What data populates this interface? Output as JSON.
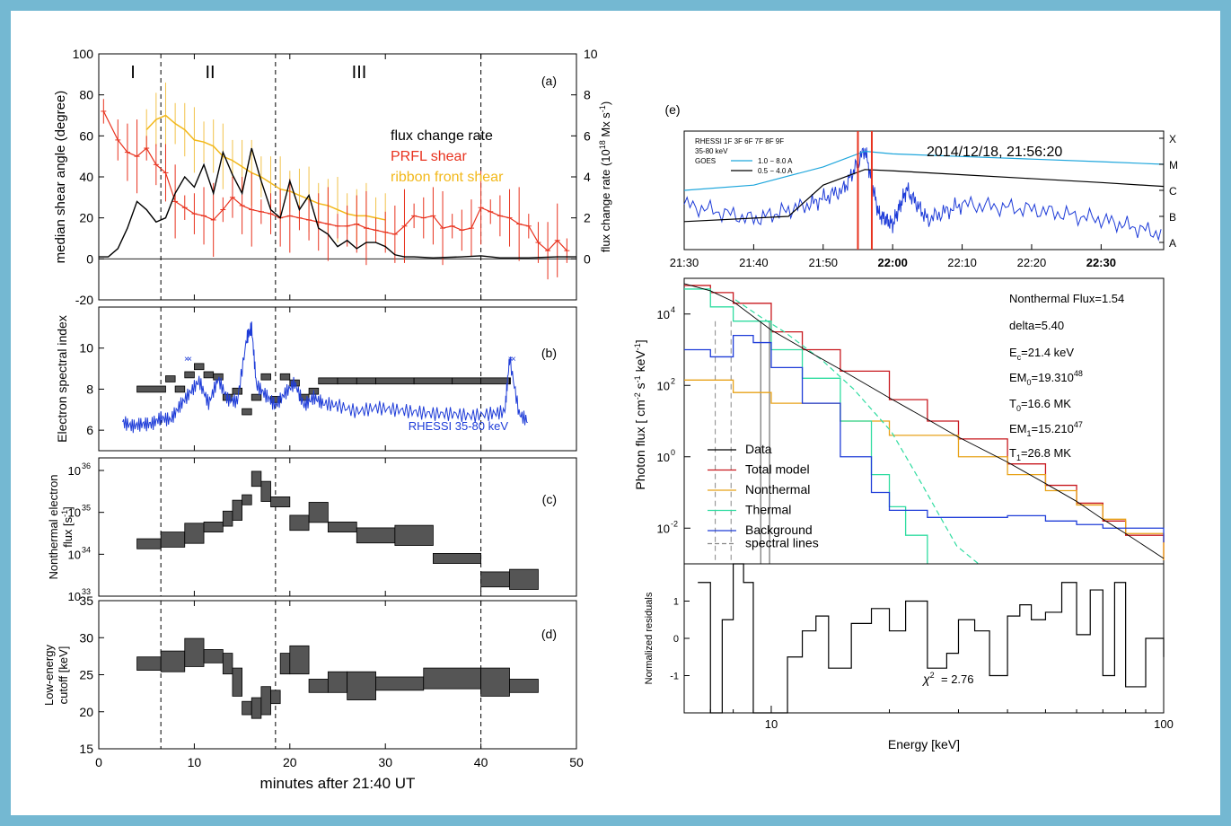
{
  "panel_a": {
    "tag": "(a)",
    "phases": [
      "I",
      "II",
      "III"
    ],
    "ylabel_left": "median shear angle (degree)",
    "ylabel_right_pre": "flux change rate (10",
    "ylabel_right_sup": "18",
    "ylabel_right_post": " Mx s",
    "ylabel_right_sup2": "-1",
    "ylabel_right_end": ")",
    "yticks_left": [
      "100",
      "80",
      "60",
      "40",
      "20",
      "0",
      "-20"
    ],
    "yticks_right": [
      "10",
      "8",
      "6",
      "4",
      "2",
      "0"
    ],
    "legend": [
      {
        "label": "flux change rate",
        "color": "#000000"
      },
      {
        "label": "PRFL shear",
        "color": "#e8321e"
      },
      {
        "label": "ribbon front shear",
        "color": "#f2b81a"
      }
    ]
  },
  "panel_b": {
    "tag": "(b)",
    "ylabel": "Electron spectral index",
    "yticks": [
      "10",
      "8",
      "6"
    ],
    "annotation": "RHESSI 35-80 keV"
  },
  "panel_c": {
    "tag": "(c)",
    "ylabel1": "Nonthermal electron",
    "ylabel2_pre": "flux [s",
    "ylabel2_sup": "-1",
    "ylabel2_post": "]",
    "ytick_base": "10",
    "ytick_exps": [
      "36",
      "35",
      "34",
      "33"
    ]
  },
  "panel_d": {
    "tag": "(d)",
    "ylabel1": "Low-energy",
    "ylabel2": "cutoff [keV]",
    "yticks": [
      "35",
      "30",
      "25",
      "20",
      "15"
    ],
    "xticks": [
      "0",
      "10",
      "20",
      "30",
      "40",
      "50"
    ],
    "xlabel": "minutes after 21:40 UT"
  },
  "panel_e": {
    "tag": "(e)",
    "header_line1": "RHESSI  1F 3F 6F 7F 8F 9F",
    "header_line2": "35-80 keV",
    "header_goes": "GOES",
    "goes_legend": [
      {
        "label": "1.0 − 8.0 A",
        "color": "#1ea6dc"
      },
      {
        "label": "0.5 − 4.0 A",
        "color": "#000000"
      }
    ],
    "datetime": "2014/12/18,  21:56:20",
    "goes_classes": [
      "X",
      "M",
      "C",
      "B",
      "A"
    ],
    "time_ticks": [
      "21:30",
      "21:40",
      "21:50",
      "22:00",
      "22:10",
      "22:20",
      "22:30"
    ],
    "spec_ylabel_pre": "Photon flux [ cm",
    "spec_ylabel_sup1": "-2",
    "spec_ylabel_mid": " s",
    "spec_ylabel_sup2": "-1",
    "spec_ylabel_mid2": " keV",
    "spec_ylabel_sup3": "-1",
    "spec_ylabel_end": "]",
    "spec_ytick_base": "10",
    "spec_ytick_exps": [
      "4",
      "2",
      "0",
      "-2"
    ],
    "fit_params": {
      "nonthermal_flux": "Nonthermal Flux=1.54",
      "delta": "delta=5.40",
      "ec_pre": "E",
      "ec_sub": "c",
      "ec_post": "=21.4 keV",
      "em0_pre": "EM",
      "em0_sub": "0",
      "em0_post": "=19.310",
      "em0_sup": "48",
      "t0_pre": "T",
      "t0_sub": "0",
      "t0_post": "=16.6 MK",
      "em1_pre": "EM",
      "em1_sub": "1",
      "em1_post": "=15.210",
      "em1_sup": "47",
      "t1_pre": "T",
      "t1_sub": "1",
      "t1_post": "=26.8 MK"
    },
    "spec_legend": [
      {
        "label": "Data",
        "color": "#000000"
      },
      {
        "label": "Total model",
        "color": "#c8181e"
      },
      {
        "label": "Nonthermal",
        "color": "#e8a218"
      },
      {
        "label": "Thermal",
        "color": "#2fdca0"
      },
      {
        "label": "Background",
        "color": "#1e3cd8"
      },
      {
        "label": "spectral lines",
        "color": "#888888"
      }
    ],
    "resid_ylabel": "Normalized residuals",
    "resid_yticks": [
      "1",
      "0",
      "-1"
    ],
    "chi2_text": "= 2.76",
    "energy_ticks": [
      "10",
      "100"
    ],
    "xlabel": "Energy [keV]"
  },
  "chart_data": [
    {
      "type": "line",
      "panel": "a",
      "title": "",
      "xlabel": "",
      "ylabel": "median shear angle (degree)",
      "y2label": "flux change rate (10^18 Mx s^-1)",
      "xlim": [
        0,
        50
      ],
      "ylim": [
        -20,
        100
      ],
      "y2lim": [
        0,
        10
      ],
      "phase_boundaries": [
        6.5,
        18.5,
        40
      ],
      "series": [
        {
          "name": "PRFL shear",
          "axis": "left",
          "x": [
            0.5,
            2,
            3,
            4,
            5,
            6,
            7,
            8,
            9,
            10,
            11,
            12,
            13,
            14,
            15,
            16,
            17,
            18,
            19,
            20,
            21,
            22,
            23,
            24,
            25,
            26,
            27,
            28,
            29,
            30,
            31,
            32,
            33,
            34,
            35,
            36,
            37,
            38,
            39,
            40,
            41,
            42,
            43,
            44,
            45,
            46,
            47,
            48,
            49
          ],
          "y": [
            72,
            58,
            52,
            50,
            54,
            46,
            42,
            28,
            25,
            22,
            21,
            19,
            24,
            30,
            26,
            24,
            23,
            22,
            20,
            21,
            20,
            19,
            18,
            17,
            16,
            16,
            17,
            15,
            14,
            13,
            12,
            16,
            21,
            20,
            21,
            15,
            16,
            14,
            15,
            25,
            23,
            21,
            20,
            17,
            16,
            8,
            4,
            9,
            4
          ]
        },
        {
          "name": "ribbon front shear",
          "axis": "left",
          "x": [
            5,
            6,
            7,
            8,
            9,
            10,
            11,
            12,
            13,
            14,
            15,
            16,
            17,
            18,
            19,
            20,
            21,
            22,
            23,
            24,
            25,
            26,
            27,
            28,
            29,
            30
          ],
          "y": [
            63,
            68,
            70,
            66,
            63,
            58,
            57,
            55,
            50,
            48,
            45,
            42,
            40,
            37,
            34,
            33,
            31,
            29,
            27,
            26,
            24,
            22,
            21,
            21,
            20,
            19
          ]
        },
        {
          "name": "flux change rate",
          "axis": "right",
          "x": [
            0,
            1,
            2,
            3,
            4,
            5,
            6,
            7,
            8,
            9,
            10,
            11,
            12,
            13,
            14,
            15,
            16,
            17,
            18,
            19,
            20,
            21,
            22,
            23,
            24,
            25,
            26,
            27,
            28,
            29,
            30,
            31,
            32,
            33,
            35,
            38,
            40,
            42,
            45,
            48,
            50
          ],
          "y": [
            0.1,
            0.1,
            0.5,
            1.5,
            2.8,
            2.4,
            1.8,
            2.0,
            3.2,
            4.0,
            3.5,
            4.6,
            3.2,
            5.2,
            4.1,
            3.2,
            5.4,
            3.8,
            2.4,
            2.0,
            3.8,
            2.4,
            3.1,
            1.5,
            1.2,
            0.6,
            0.9,
            0.5,
            0.8,
            0.8,
            0.6,
            0.2,
            0.1,
            0.1,
            0.05,
            0.1,
            0.15,
            0.05,
            0.05,
            0.1,
            0.1
          ]
        }
      ]
    },
    {
      "type": "line",
      "panel": "b",
      "ylabel": "Electron spectral index",
      "xlim": [
        0,
        50
      ],
      "ylim": [
        5,
        12
      ],
      "series": [
        {
          "name": "RHESSI 35-80 keV",
          "x": [
            2.5,
            3.5,
            4.5,
            5.5,
            6.5,
            7.5,
            8.5,
            9.5,
            10.5,
            11.5,
            12.5,
            13.5,
            14.5,
            15.5,
            16,
            16.5,
            17.5,
            18.5,
            19.5,
            20.5,
            21.5,
            22.5,
            23.5,
            25,
            27,
            29,
            31,
            33,
            35,
            37,
            39,
            41,
            42.5,
            43,
            44,
            45
          ],
          "y": [
            6.4,
            6.2,
            6.3,
            6.3,
            6.6,
            6.5,
            7.2,
            7.8,
            8.4,
            7.3,
            8.5,
            7.5,
            7.4,
            10.5,
            11.0,
            8.2,
            7.7,
            7.2,
            7.8,
            8.3,
            7.2,
            7.6,
            7.3,
            7.2,
            6.9,
            7.1,
            7.0,
            6.9,
            6.8,
            6.8,
            6.7,
            6.8,
            6.9,
            9.5,
            6.8,
            6.4
          ]
        },
        {
          "name": "",
          "x": [
            4,
            7,
            8,
            9,
            10,
            11,
            12,
            13,
            14,
            15,
            16,
            17,
            18,
            19,
            20,
            21,
            22,
            23,
            25,
            27,
            29,
            33,
            37,
            40,
            43
          ],
          "y": [
            8.0,
            8.5,
            8.0,
            8.7,
            9.1,
            8.7,
            8.6,
            7.6,
            7.9,
            6.9,
            7.6,
            8.6,
            7.5,
            8.6,
            8.3,
            7.6,
            7.9,
            8.4,
            8.4,
            8.4,
            8.4,
            8.4,
            8.4,
            8.4,
            8.4
          ]
        }
      ]
    },
    {
      "type": "line",
      "panel": "c",
      "ylabel": "Nonthermal electron flux [s^-1]",
      "xlim": [
        0,
        50
      ],
      "ylim_log10": [
        33,
        36.3
      ],
      "series": [
        {
          "name": "",
          "x": [
            4,
            6.5,
            9,
            11,
            13,
            14,
            15,
            16,
            17,
            18,
            20,
            22,
            24,
            27,
            31,
            35,
            40,
            43
          ],
          "log10_y": [
            34.25,
            34.35,
            34.5,
            34.65,
            34.85,
            35.05,
            35.3,
            35.8,
            35.5,
            35.25,
            34.75,
            35.0,
            34.65,
            34.45,
            34.45,
            33.9,
            33.4,
            33.4
          ]
        }
      ]
    },
    {
      "type": "line",
      "panel": "d",
      "ylabel": "Low-energy cutoff [keV]",
      "xlabel": "minutes after 21:40 UT",
      "xlim": [
        0,
        50
      ],
      "ylim": [
        15,
        35
      ],
      "series": [
        {
          "name": "",
          "x": [
            4,
            6.5,
            9,
            11,
            13,
            14,
            15,
            16,
            17,
            18,
            19,
            20,
            22,
            24,
            26,
            29,
            34,
            40,
            43
          ],
          "y": [
            26.5,
            26.8,
            28,
            27.5,
            26.5,
            24,
            20.5,
            20.5,
            21.5,
            22,
            26.5,
            27,
            23.5,
            24,
            23.5,
            23.8,
            24.5,
            24,
            23.5
          ]
        }
      ]
    },
    {
      "type": "line",
      "panel": "e-top",
      "xlabel": "",
      "x_unit": "UT (2014/12/18)",
      "xlim": [
        "21:30",
        "22:39"
      ],
      "series": [
        {
          "name": "1.0 − 8.0 A",
          "x": [
            "21:30",
            "21:40",
            "21:50",
            "21:56",
            "22:00",
            "22:10",
            "22:20",
            "22:30",
            "22:39"
          ],
          "y": [
            -6.0,
            -5.8,
            -5.1,
            -4.5,
            -4.6,
            -4.7,
            -4.8,
            -4.9,
            -5.0
          ]
        },
        {
          "name": "0.5 − 4.0 A",
          "x": [
            "21:30",
            "21:45",
            "21:50",
            "21:56",
            "22:00",
            "22:10",
            "22:20",
            "22:30",
            "22:39"
          ],
          "y": [
            -7.2,
            -7.0,
            -5.8,
            -5.2,
            -5.25,
            -5.4,
            -5.55,
            -5.7,
            -5.85
          ]
        },
        {
          "name": "RHESSI 35-80 keV",
          "x": [
            "21:30",
            "21:40",
            "21:48",
            "21:53",
            "21:56",
            "21:58",
            "22:00",
            "22:02",
            "22:05",
            "22:10",
            "22:20",
            "22:30",
            "22:39"
          ],
          "y": [
            0.45,
            0.3,
            0.45,
            0.6,
            1.0,
            0.35,
            0.25,
            0.6,
            0.3,
            0.45,
            0.4,
            0.3,
            0.15
          ]
        }
      ]
    },
    {
      "type": "line",
      "panel": "e-spectrum",
      "xlabel": "Energy [keV]",
      "ylabel": "Photon flux [cm^-2 s^-1 keV^-1]",
      "x_scale": "log",
      "y_scale": "log",
      "xlim": [
        6,
        100
      ],
      "ylim_log10": [
        -3,
        5
      ],
      "series": [
        {
          "name": "Total model",
          "x": [
            6,
            7,
            8,
            10,
            12,
            15,
            20,
            25,
            30,
            40,
            50,
            60,
            70,
            80,
            100
          ],
          "log10_y": [
            4.8,
            4.6,
            4.3,
            3.5,
            3.0,
            2.4,
            1.6,
            1.0,
            0.5,
            -0.2,
            -0.8,
            -1.3,
            -1.8,
            -2.2,
            -2.9
          ]
        },
        {
          "name": "Nonthermal",
          "x": [
            6,
            8,
            10,
            15,
            20,
            30,
            40,
            50,
            60,
            70,
            80,
            100
          ],
          "log10_y": [
            2.15,
            1.8,
            1.5,
            1.0,
            0.6,
            0.0,
            -0.5,
            -0.95,
            -1.35,
            -1.75,
            -2.15,
            -2.9
          ]
        },
        {
          "name": "Thermal",
          "x": [
            6,
            7,
            8,
            10,
            12,
            15,
            18,
            20,
            22,
            25
          ],
          "log10_y": [
            4.7,
            4.2,
            3.8,
            3.0,
            2.2,
            1.0,
            -0.5,
            -1.4,
            -2.2,
            -3.0
          ]
        },
        {
          "name": "Background",
          "x": [
            6,
            7,
            8,
            9,
            10,
            12,
            15,
            18,
            20,
            25,
            30,
            40,
            50,
            60,
            70,
            80,
            100
          ],
          "log10_y": [
            3.0,
            2.8,
            3.4,
            3.2,
            2.5,
            1.5,
            0.0,
            -1.0,
            -1.5,
            -1.7,
            -1.7,
            -1.65,
            -1.8,
            -1.9,
            -2.0,
            -2.0,
            -2.4
          ]
        }
      ]
    },
    {
      "type": "line",
      "panel": "e-residuals",
      "ylabel": "Normalized residuals",
      "xlabel": "Energy [keV]",
      "x_scale": "log",
      "xlim": [
        6,
        100
      ],
      "ylim": [
        -2,
        2
      ],
      "series": [
        {
          "name": "",
          "x": [
            6.5,
            7,
            7.5,
            8,
            8.5,
            9,
            11,
            12,
            13,
            14,
            16,
            18,
            20,
            22,
            25,
            28,
            30,
            33,
            36,
            40,
            43,
            46,
            50,
            55,
            60,
            65,
            70,
            75,
            80,
            90,
            100
          ],
          "y": [
            1.5,
            -2,
            0.5,
            2,
            1.5,
            -2,
            -0.5,
            0.2,
            0.6,
            -0.8,
            0.4,
            0.8,
            0.2,
            1.0,
            -0.8,
            -0.4,
            0.5,
            0.2,
            -1.0,
            0.6,
            0.9,
            0.5,
            0.7,
            1.5,
            0.1,
            1.3,
            -1.0,
            1.5,
            -1.3,
            0.0,
            -0.5
          ]
        }
      ],
      "chi2": 2.76
    }
  ]
}
